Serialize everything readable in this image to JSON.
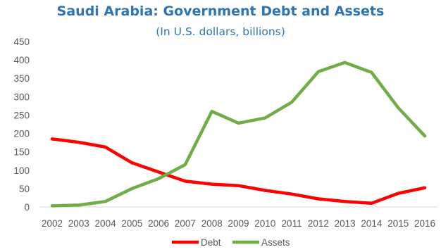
{
  "chart_data": {
    "type": "line",
    "title": "Saudi Arabia: Government Debt and Assets",
    "subtitle": "(In U.S. dollars, billions)",
    "title_color": "#2E75B6",
    "x": [
      "2002",
      "2003",
      "2004",
      "2005",
      "2006",
      "2007",
      "2008",
      "2009",
      "2010",
      "2011",
      "2012",
      "2013",
      "2014",
      "2015",
      "2016"
    ],
    "yticks": [
      0,
      50,
      100,
      150,
      200,
      250,
      300,
      350,
      400,
      450
    ],
    "ylim": [
      0,
      450
    ],
    "grid": false,
    "legend_position": "bottom",
    "series": [
      {
        "name": "Debt",
        "color": "#FF0000",
        "values": [
          185,
          176,
          163,
          120,
          95,
          70,
          62,
          58,
          45,
          35,
          22,
          15,
          10,
          37,
          52
        ]
      },
      {
        "name": "Assets",
        "color": "#70AD47",
        "values": [
          3,
          5,
          15,
          50,
          77,
          115,
          260,
          228,
          242,
          285,
          368,
          393,
          366,
          270,
          193
        ]
      }
    ]
  }
}
